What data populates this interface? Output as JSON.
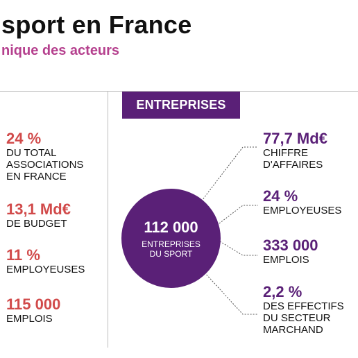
{
  "header": {
    "title": "sport en France",
    "subtitle": "nique des acteurs"
  },
  "entreprises": {
    "tag": "ENTREPRISES",
    "center_value": "112 000",
    "center_label": "ENTREPRISES\nDU SPORT",
    "stats": [
      {
        "value": "77,7 Md€",
        "label": "CHIFFRE\nD'AFFAIRES"
      },
      {
        "value": "24 %",
        "label": "EMPLOYEUSES"
      },
      {
        "value": "333 000",
        "label": "EMPLOIS"
      },
      {
        "value": "2,2 %",
        "label": "DES EFFECTIFS\nDU SECTEUR\nMARCHAND"
      }
    ]
  },
  "associations": {
    "stats": [
      {
        "value": "24 %",
        "label": "DU TOTAL\nASSOCIATIONS\nEN FRANCE"
      },
      {
        "value": "13,1 Md€",
        "label": "DE BUDGET"
      },
      {
        "value": "11 %",
        "label": "EMPLOYEUSES"
      },
      {
        "value": "115 000",
        "label": "EMPLOIS"
      }
    ]
  },
  "colors": {
    "purple": "#5a2077",
    "red": "#d14a4a",
    "magenta": "#b5408e"
  }
}
